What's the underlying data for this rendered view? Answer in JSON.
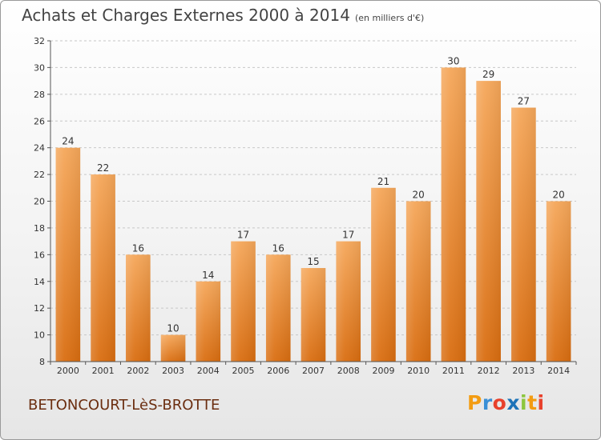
{
  "header": {
    "title": "Achats et Charges Externes 2000 à 2014",
    "subtitle": "(en milliers d'€)"
  },
  "footer": {
    "commune": "BETONCOURT-LèS-BROTTE",
    "logo": [
      "P",
      "r",
      "o",
      "x",
      "i",
      "t",
      "i"
    ],
    "logo_colors": [
      "#f39c12",
      "#3a8fd6",
      "#e8412c",
      "#1e73b8",
      "#8cc63e",
      "#f39c12",
      "#e8412c"
    ]
  },
  "colors": {
    "bar_top": "#f5a75a",
    "bar_bottom": "#d96d10",
    "grid": "#c8c8c8"
  },
  "chart_data": {
    "type": "bar",
    "title": "Achats et Charges Externes 2000 à 2014",
    "subtitle": "(en milliers d'€)",
    "categories": [
      "2000",
      "2001",
      "2002",
      "2003",
      "2004",
      "2005",
      "2006",
      "2007",
      "2008",
      "2009",
      "2010",
      "2011",
      "2012",
      "2013",
      "2014"
    ],
    "values": [
      24,
      22,
      16,
      10,
      14,
      17,
      16,
      15,
      17,
      21,
      20,
      30,
      29,
      27,
      20
    ],
    "ylim": [
      8,
      32
    ],
    "yticks": [
      8,
      10,
      12,
      14,
      16,
      18,
      20,
      22,
      24,
      26,
      28,
      30,
      32
    ],
    "xlabel": "",
    "ylabel": "",
    "grid": true
  }
}
